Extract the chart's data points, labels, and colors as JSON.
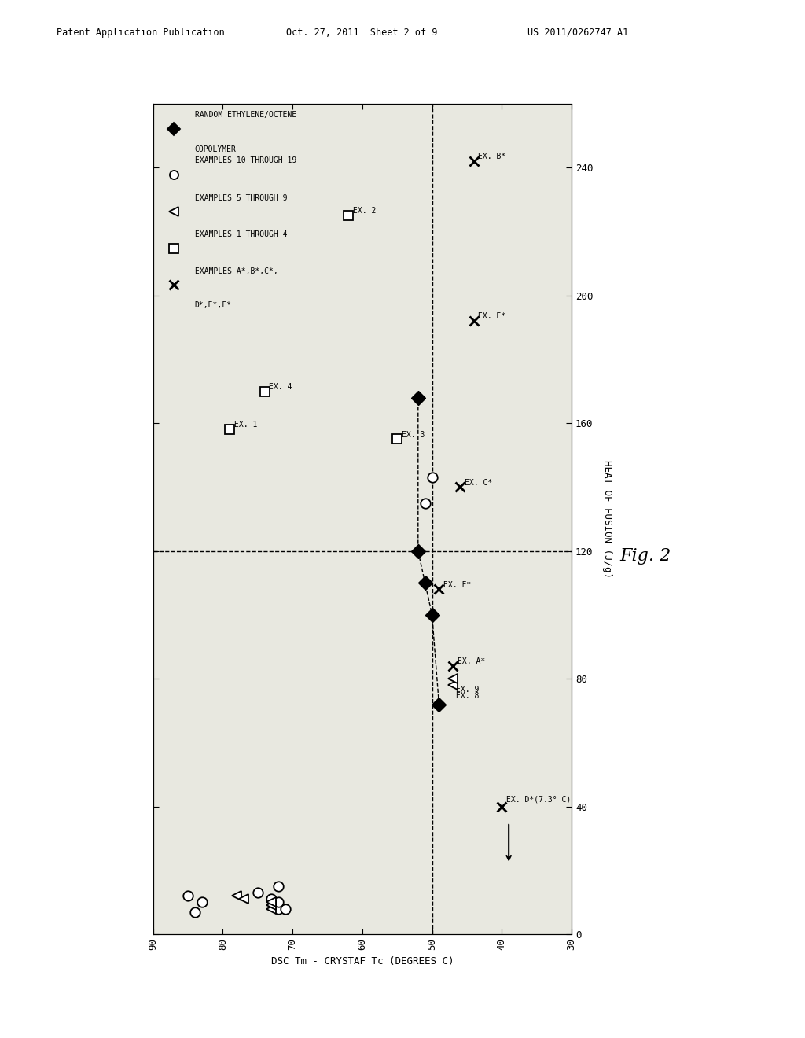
{
  "xlabel": "DSC Tm - CRYSTAF Tc (DEGREES C)",
  "ylabel": "HEAT OF FUSION (J/g)",
  "xlim_left": 90,
  "xlim_right": 30,
  "ylim_bottom": 0,
  "ylim_top": 260,
  "xticks": [
    90,
    80,
    70,
    60,
    50,
    40,
    30
  ],
  "yticks": [
    0,
    40,
    80,
    120,
    160,
    200,
    240
  ],
  "dashed_hline": 120,
  "dashed_vline": 50,
  "header_left": "Patent Application Publication",
  "header_mid": "Oct. 27, 2011  Sheet 2 of 9",
  "header_right": "US 2011/0262747 A1",
  "fig_label": "Fig. 2",
  "legend_items": [
    {
      "marker": "D",
      "filled": true,
      "label1": "RANDOM ETHYLENE/OCTENE",
      "label2": "COPOLYMER"
    },
    {
      "marker": "o",
      "filled": false,
      "label1": "EXAMPLES 10 THROUGH 19",
      "label2": ""
    },
    {
      "marker": "<",
      "filled": false,
      "label1": "EXAMPLES 5 THROUGH 9",
      "label2": ""
    },
    {
      "marker": "s",
      "filled": false,
      "label1": "EXAMPLES 1 THROUGH 4",
      "label2": ""
    },
    {
      "marker": "x",
      "filled": false,
      "label1": "EXAMPLES A*,B*,C*,",
      "label2": "D*,E*,F*"
    }
  ],
  "diamonds_xy": [
    [
      49,
      72
    ],
    [
      50,
      100
    ],
    [
      51,
      110
    ],
    [
      52,
      120
    ],
    [
      52,
      168
    ]
  ],
  "circles_xy": [
    [
      83,
      10
    ],
    [
      85,
      12
    ],
    [
      84,
      7
    ],
    [
      75,
      13
    ],
    [
      72,
      15
    ],
    [
      72,
      8
    ],
    [
      73,
      11
    ],
    [
      71,
      8
    ],
    [
      72,
      10
    ],
    [
      51,
      135
    ],
    [
      50,
      143
    ]
  ],
  "triangles_xy": [
    [
      78,
      12
    ],
    [
      77,
      11
    ],
    [
      73,
      8
    ],
    [
      73,
      9
    ],
    [
      73,
      10
    ],
    [
      47,
      78
    ],
    [
      47,
      80
    ]
  ],
  "triangle_labels": [
    "",
    "",
    "",
    "",
    "",
    "EX. 8",
    "EX. 9"
  ],
  "squares_xy": [
    [
      79,
      158
    ],
    [
      74,
      170
    ],
    [
      55,
      155
    ],
    [
      62,
      225
    ]
  ],
  "square_labels": [
    "EX. 1",
    "EX. 4",
    "EX. 3",
    "EX. 2"
  ],
  "crosses_xy": [
    [
      44,
      242
    ],
    [
      44,
      192
    ],
    [
      46,
      140
    ],
    [
      49,
      108
    ],
    [
      47,
      84
    ],
    [
      40,
      40
    ]
  ],
  "cross_labels": [
    "EX. B*",
    "EX. E*",
    "EX. C*",
    "EX. F*",
    "EX. A*",
    "EX. D*(7.3° C)"
  ]
}
